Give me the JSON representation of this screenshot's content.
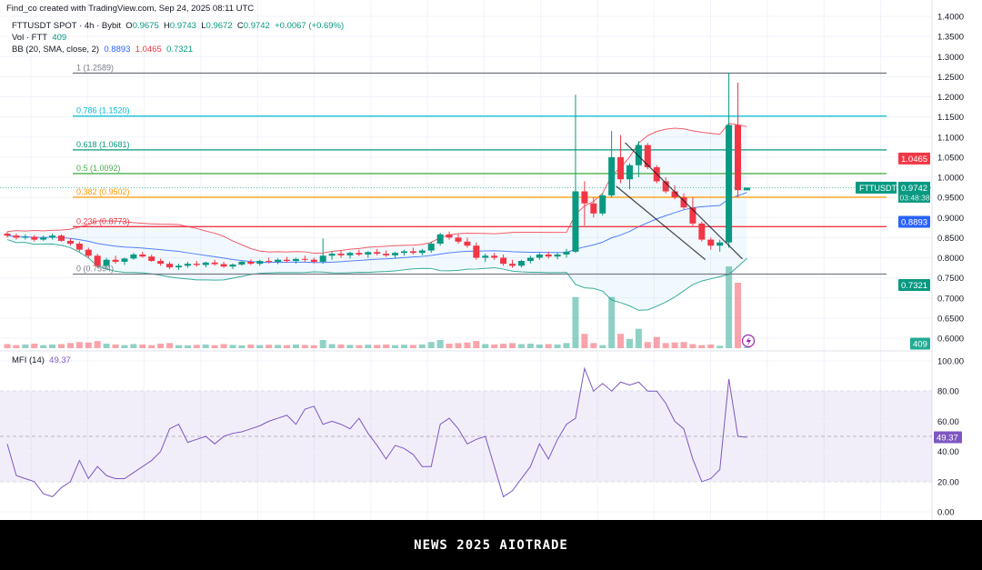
{
  "credit": "Find_co created with TradingView.com, Sep 24, 2025 08:11 UTC",
  "legend": {
    "symbol": "FTTUSDT SPOT · 4h · Bybit",
    "o_label": "O",
    "o": "0.9675",
    "h_label": "H",
    "h": "0.9743",
    "l_label": "L",
    "l": "0.9672",
    "c_label": "C",
    "c": "0.9742",
    "change": "+0.0067 (+0.69%)",
    "vol_label": "Vol · FTT",
    "vol": "409",
    "bb_label": "BB (20, SMA, close, 2)",
    "bb_mid": "0.8893",
    "bb_upper": "1.0465",
    "bb_lower": "0.7321",
    "mfi_label": "MFI (14)",
    "mfi": "49.37"
  },
  "banner": "NEWS 2025 AIOTRADE",
  "colors": {
    "up": "#089981",
    "down": "#f23645",
    "bb_mid": "#2962ff",
    "bb_upper": "#f23645",
    "bb_lower": "#089981",
    "mfi": "#7e57c2"
  },
  "chart_data": {
    "type": "candlestick",
    "symbol": "FTTUSDT",
    "price_axis": {
      "range": [
        0.6,
        1.4
      ],
      "ticks": [
        "1.4000",
        "1.3500",
        "1.3000",
        "1.2500",
        "1.2000",
        "1.1500",
        "1.1000",
        "1.0500",
        "1.0000",
        "0.9500",
        "0.9000",
        "0.8500",
        "0.8000",
        "0.7500",
        "0.7000",
        "0.6500",
        "0.6000"
      ]
    },
    "mfi_axis": {
      "range": [
        0,
        100
      ],
      "ticks": [
        "100.00",
        "80.00",
        "60.00",
        "40.00",
        "20.00",
        "0.00"
      ],
      "bands": [
        80,
        50,
        20
      ]
    },
    "grid": true,
    "candles": [
      [
        0.86,
        0.865,
        0.85,
        0.855
      ],
      [
        0.855,
        0.86,
        0.845,
        0.85
      ],
      [
        0.85,
        0.858,
        0.845,
        0.852
      ],
      [
        0.852,
        0.856,
        0.84,
        0.845
      ],
      [
        0.845,
        0.855,
        0.842,
        0.85
      ],
      [
        0.85,
        0.86,
        0.845,
        0.855
      ],
      [
        0.855,
        0.858,
        0.84,
        0.842
      ],
      [
        0.842,
        0.848,
        0.83,
        0.835
      ],
      [
        0.835,
        0.84,
        0.815,
        0.82
      ],
      [
        0.82,
        0.825,
        0.8,
        0.805
      ],
      [
        0.805,
        0.81,
        0.775,
        0.78
      ],
      [
        0.78,
        0.8,
        0.775,
        0.795
      ],
      [
        0.795,
        0.805,
        0.785,
        0.79
      ],
      [
        0.79,
        0.8,
        0.782,
        0.798
      ],
      [
        0.798,
        0.812,
        0.795,
        0.808
      ],
      [
        0.808,
        0.815,
        0.8,
        0.803
      ],
      [
        0.803,
        0.808,
        0.79,
        0.792
      ],
      [
        0.792,
        0.798,
        0.78,
        0.785
      ],
      [
        0.785,
        0.79,
        0.772,
        0.776
      ],
      [
        0.776,
        0.785,
        0.77,
        0.78
      ],
      [
        0.78,
        0.79,
        0.775,
        0.785
      ],
      [
        0.785,
        0.792,
        0.778,
        0.782
      ],
      [
        0.782,
        0.79,
        0.776,
        0.788
      ],
      [
        0.788,
        0.795,
        0.78,
        0.784
      ],
      [
        0.784,
        0.79,
        0.775,
        0.778
      ],
      [
        0.778,
        0.786,
        0.772,
        0.783
      ],
      [
        0.783,
        0.792,
        0.78,
        0.79
      ],
      [
        0.79,
        0.796,
        0.782,
        0.785
      ],
      [
        0.785,
        0.795,
        0.78,
        0.792
      ],
      [
        0.792,
        0.8,
        0.786,
        0.79
      ],
      [
        0.79,
        0.798,
        0.784,
        0.795
      ],
      [
        0.795,
        0.802,
        0.788,
        0.792
      ],
      [
        0.792,
        0.8,
        0.785,
        0.797
      ],
      [
        0.797,
        0.805,
        0.79,
        0.795
      ],
      [
        0.795,
        0.8,
        0.786,
        0.79
      ],
      [
        0.79,
        0.848,
        0.785,
        0.805
      ],
      [
        0.805,
        0.815,
        0.795,
        0.81
      ],
      [
        0.81,
        0.818,
        0.8,
        0.806
      ],
      [
        0.806,
        0.815,
        0.798,
        0.812
      ],
      [
        0.812,
        0.82,
        0.804,
        0.808
      ],
      [
        0.808,
        0.816,
        0.8,
        0.814
      ],
      [
        0.814,
        0.822,
        0.806,
        0.81
      ],
      [
        0.81,
        0.818,
        0.802,
        0.806
      ],
      [
        0.806,
        0.815,
        0.798,
        0.812
      ],
      [
        0.812,
        0.82,
        0.805,
        0.816
      ],
      [
        0.816,
        0.825,
        0.808,
        0.812
      ],
      [
        0.812,
        0.822,
        0.806,
        0.818
      ],
      [
        0.818,
        0.84,
        0.812,
        0.835
      ],
      [
        0.835,
        0.862,
        0.83,
        0.858
      ],
      [
        0.858,
        0.865,
        0.845,
        0.85
      ],
      [
        0.85,
        0.858,
        0.835,
        0.84
      ],
      [
        0.84,
        0.85,
        0.825,
        0.83
      ],
      [
        0.83,
        0.838,
        0.795,
        0.8
      ],
      [
        0.8,
        0.81,
        0.79,
        0.805
      ],
      [
        0.805,
        0.812,
        0.795,
        0.8
      ],
      [
        0.8,
        0.808,
        0.78,
        0.785
      ],
      [
        0.785,
        0.795,
        0.775,
        0.78
      ],
      [
        0.78,
        0.795,
        0.776,
        0.792
      ],
      [
        0.792,
        0.805,
        0.786,
        0.8
      ],
      [
        0.8,
        0.812,
        0.795,
        0.808
      ],
      [
        0.808,
        0.815,
        0.798,
        0.803
      ],
      [
        0.803,
        0.812,
        0.796,
        0.808
      ],
      [
        0.808,
        0.822,
        0.8,
        0.815
      ],
      [
        0.815,
        1.205,
        0.812,
        0.965
      ],
      [
        0.965,
        0.99,
        0.88,
        0.935
      ],
      [
        0.935,
        0.95,
        0.9,
        0.91
      ],
      [
        0.91,
        0.96,
        0.905,
        0.955
      ],
      [
        0.955,
        1.115,
        0.95,
        1.05
      ],
      [
        1.05,
        1.105,
        0.985,
        0.995
      ],
      [
        0.995,
        1.035,
        0.97,
        1.03
      ],
      [
        1.03,
        1.09,
        1.0,
        1.08
      ],
      [
        1.08,
        1.085,
        1.02,
        1.025
      ],
      [
        1.025,
        1.03,
        0.985,
        0.99
      ],
      [
        0.99,
        1.0,
        0.96,
        0.965
      ],
      [
        0.965,
        0.98,
        0.945,
        0.95
      ],
      [
        0.95,
        0.96,
        0.92,
        0.925
      ],
      [
        0.925,
        0.95,
        0.88,
        0.885
      ],
      [
        0.885,
        0.89,
        0.84,
        0.845
      ],
      [
        0.845,
        0.85,
        0.82,
        0.83
      ],
      [
        0.83,
        0.845,
        0.815,
        0.838
      ],
      [
        0.838,
        1.26,
        0.825,
        1.13
      ],
      [
        1.13,
        1.235,
        0.95,
        0.968
      ],
      [
        0.9675,
        0.9743,
        0.9672,
        0.9742
      ]
    ],
    "volume": [
      20000,
      15000,
      18000,
      22000,
      15000,
      18000,
      20000,
      25000,
      30000,
      28000,
      35000,
      22000,
      18000,
      15000,
      20000,
      18000,
      15000,
      22000,
      25000,
      15000,
      14000,
      16000,
      18000,
      15000,
      20000,
      16000,
      14000,
      18000,
      15000,
      17000,
      16000,
      15000,
      18000,
      16000,
      14000,
      40000,
      20000,
      18000,
      16000,
      15000,
      17000,
      16000,
      18000,
      15000,
      17000,
      16000,
      18000,
      30000,
      40000,
      22000,
      25000,
      28000,
      35000,
      20000,
      18000,
      22000,
      25000,
      20000,
      22000,
      18000,
      20000,
      18000,
      25000,
      250000,
      70000,
      25000,
      15000,
      250000,
      70000,
      45000,
      95000,
      30000,
      55000,
      25000,
      28000,
      30000,
      20000,
      15000,
      18000,
      12000,
      400000,
      320000,
      409
    ],
    "mfi": [
      45,
      24,
      22,
      20,
      12,
      10,
      16,
      20,
      34,
      22,
      30,
      24,
      22,
      22,
      26,
      30,
      34,
      40,
      55,
      58,
      46,
      48,
      50,
      45,
      50,
      52,
      53,
      55,
      57,
      60,
      62,
      64,
      58,
      68,
      70,
      58,
      60,
      58,
      55,
      62,
      52,
      44,
      35,
      44,
      42,
      38,
      30,
      30,
      58,
      62,
      55,
      45,
      48,
      50,
      30,
      10,
      14,
      22,
      30,
      45,
      35,
      48,
      58,
      62,
      95,
      80,
      85,
      80,
      86,
      84,
      86,
      80,
      80,
      72,
      60,
      55,
      35,
      20,
      22,
      28,
      88,
      50,
      49.37
    ],
    "bollinger": {
      "length": 20,
      "mult": 2,
      "upper_last": 1.0465,
      "middle_last": 0.8893,
      "lower_last": 0.7321
    },
    "fibonacci": [
      {
        "label": "1 (1.2589)",
        "price": 1.2589,
        "color": "#787b86"
      },
      {
        "label": "0.786 (1.1520)",
        "price": 1.152,
        "color": "#00bcd4"
      },
      {
        "label": "0.618 (1.0681)",
        "price": 1.0681,
        "color": "#089981"
      },
      {
        "label": "0.5 (1.0092)",
        "price": 1.0092,
        "color": "#4caf50"
      },
      {
        "label": "0.382 (0.9502)",
        "price": 0.9502,
        "color": "#ff9800"
      },
      {
        "label": "0.236 (0.8773)",
        "price": 0.8773,
        "color": "#f23645"
      },
      {
        "label": "0 (0.7594)",
        "price": 0.7594,
        "color": "#787b86"
      }
    ],
    "trendlines": [
      {
        "from": [
          68.5,
          1.086
        ],
        "to": [
          81.5,
          0.797
        ]
      },
      {
        "from": [
          67.5,
          0.978
        ],
        "to": [
          77.4,
          0.795
        ]
      }
    ],
    "price_tags": [
      {
        "text": "1.0465",
        "price": 1.0465,
        "color": "#f23645"
      },
      {
        "text": "0.8893",
        "price": 0.8893,
        "color": "#2962ff"
      },
      {
        "text": "0.7321",
        "price": 0.7321,
        "color": "#089981"
      }
    ],
    "last_price_tag": {
      "symbol": "FTTUSDT",
      "price": "0.9742",
      "countdown": "03:48:38",
      "color": "#089981"
    },
    "volume_tag": {
      "text": "409",
      "color": "#22ab94"
    },
    "mfi_tag": {
      "text": "49.37",
      "color": "#7e57c2"
    }
  }
}
